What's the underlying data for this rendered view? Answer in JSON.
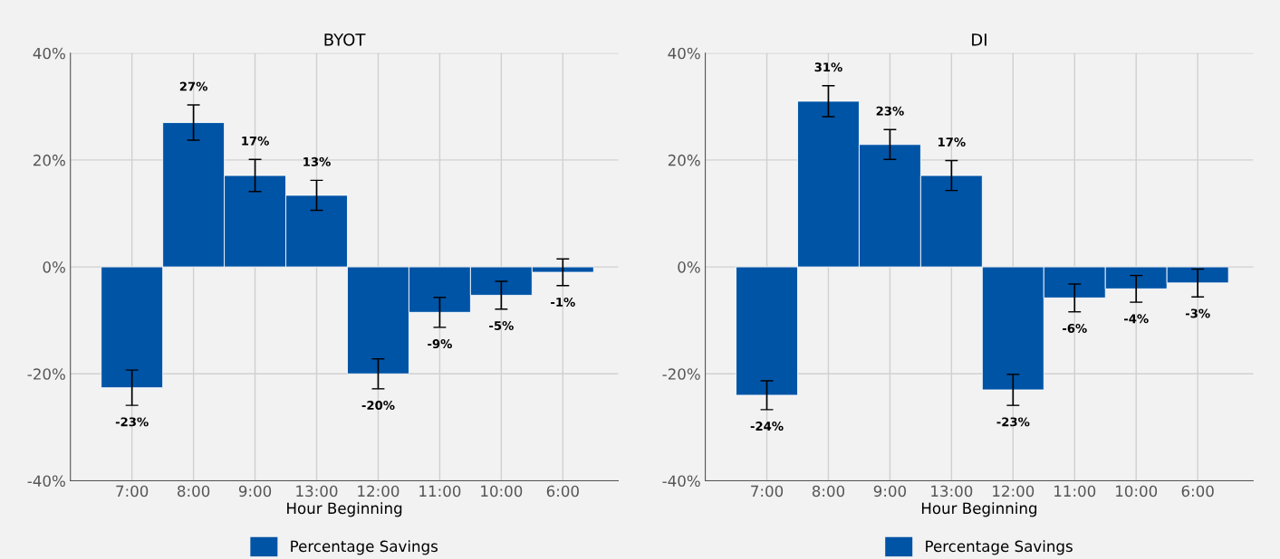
{
  "chart_data": [
    {
      "type": "bar",
      "title": "BYOT",
      "xlabel": "Hour Beginning",
      "categories": [
        "7:00",
        "8:00",
        "9:00",
        "13:00",
        "12:00",
        "11:00",
        "10:00",
        "6:00"
      ],
      "series": [
        {
          "name": "Percentage Savings",
          "color": "#0054a6",
          "values": [
            -22.6,
            27,
            17.1,
            13.4,
            -20,
            -8.5,
            -5.3,
            -1
          ],
          "errors": [
            3.3,
            3.3,
            3,
            2.8,
            2.8,
            2.8,
            2.6,
            2.5
          ],
          "value_labels": [
            "-23%",
            "27%",
            "17%",
            "13%",
            "-20%",
            "-9%",
            "-5%",
            "-1%"
          ]
        }
      ],
      "ylim": [
        -40,
        40
      ],
      "yticks": [
        {
          "value": -40,
          "label": "-40%"
        },
        {
          "value": -20,
          "label": "-20%"
        },
        {
          "value": 0,
          "label": "0%"
        },
        {
          "value": 20,
          "label": "20%"
        },
        {
          "value": 40,
          "label": "40%"
        }
      ],
      "grid": true,
      "legend": "bottom"
    },
    {
      "type": "bar",
      "title": "DI",
      "xlabel": "Hour Beginning",
      "categories": [
        "7:00",
        "8:00",
        "9:00",
        "13:00",
        "12:00",
        "11:00",
        "10:00",
        "6:00"
      ],
      "series": [
        {
          "name": "Percentage Savings",
          "color": "#0054a6",
          "values": [
            -24,
            31,
            22.9,
            17.1,
            -23,
            -5.8,
            -4.1,
            -3
          ],
          "errors": [
            2.7,
            2.9,
            2.8,
            2.8,
            2.9,
            2.6,
            2.5,
            2.6
          ],
          "value_labels": [
            "-24%",
            "31%",
            "23%",
            "17%",
            "-23%",
            "-6%",
            "-4%",
            "-3%"
          ]
        }
      ],
      "ylim": [
        -40,
        40
      ],
      "yticks": [
        {
          "value": -40,
          "label": "-40%"
        },
        {
          "value": -20,
          "label": "-20%"
        },
        {
          "value": 0,
          "label": "0%"
        },
        {
          "value": 20,
          "label": "20%"
        },
        {
          "value": 40,
          "label": "40%"
        }
      ],
      "grid": true,
      "legend": "bottom"
    }
  ]
}
